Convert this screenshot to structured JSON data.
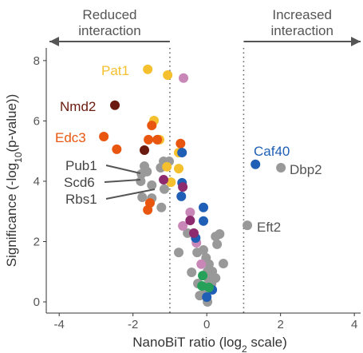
{
  "chart_data": {
    "type": "scatter",
    "header": [
      {
        "lines": [
          "Reduced",
          "interaction"
        ],
        "direction": "left"
      },
      {
        "lines": [
          "Increased",
          "interaction"
        ],
        "direction": "right"
      }
    ],
    "x_label": [
      "NanoBiT ratio (log",
      "2",
      " scale)"
    ],
    "y_label": [
      "Significance (-log",
      "10",
      "(p-value))"
    ],
    "xlim": [
      -4.35,
      4.17
    ],
    "ylim": [
      -0.37,
      8.42
    ],
    "xticks": [
      -4,
      -2,
      0,
      2,
      4
    ],
    "yticks": [
      0,
      2,
      4,
      6,
      8
    ],
    "vlines": [
      -1,
      1
    ],
    "series": [
      {
        "color": "#999999",
        "x": [
          2.01,
          1.1,
          -1.69,
          -1.77,
          -1.62,
          -1.79,
          -1.49,
          -1.25,
          -1.17,
          -1.02,
          -1.15,
          -1.49,
          -1.75,
          -1.23,
          -1.32,
          -0.26,
          -0.02,
          0.28,
          0.24,
          0.35,
          0.02,
          0.15,
          0.06,
          0.24,
          0.13,
          -0.04,
          -0.19,
          0.02,
          0.45,
          -0.41,
          -0.52,
          -0.76,
          0.06,
          -0.24,
          -0.09
        ],
        "y": [
          4.45,
          2.54,
          4.5,
          4.24,
          4.32,
          4.0,
          3.87,
          4.45,
          4.66,
          4.66,
          3.74,
          3.44,
          3.47,
          3.13,
          5.38,
          1.64,
          1.46,
          1.91,
          2.17,
          2.25,
          1.01,
          1.01,
          0.74,
          0.79,
          0.61,
          0.34,
          0.21,
          0,
          1.27,
          0.98,
          2.28,
          1.64,
          1.25,
          0.61,
          1.72
        ]
      },
      {
        "color": "#f5c02e",
        "x": [
          -1.6,
          -1.06,
          -1.43,
          -1.28,
          -0.76,
          -0.76,
          -1.08,
          -0.97
        ],
        "y": [
          7.71,
          7.52,
          6.01,
          5.38,
          4.95,
          4.42,
          4.48,
          3.97
        ]
      },
      {
        "color": "#c987b8",
        "x": [
          -0.63,
          -0.45,
          -0.65,
          -0.15,
          -0.28
        ],
        "y": [
          7.42,
          2.97,
          2.52,
          1.25,
          1.96
        ]
      },
      {
        "color": "#6b1a0f",
        "x": [
          -2.49,
          -1.69
        ],
        "y": [
          6.52,
          5.03
        ]
      },
      {
        "color": "#e8560f",
        "x": [
          -2.79,
          -2.44,
          -1.49,
          -1.58,
          -1.34,
          -0.71,
          -1.54,
          -1.6
        ],
        "y": [
          5.48,
          5.06,
          5.85,
          5.38,
          5.38,
          5.25,
          3.28,
          3.05
        ]
      },
      {
        "color": "#1f5fb5",
        "x": [
          1.32,
          -0.67,
          -0.67,
          -0.69,
          -0.09,
          -0.09,
          -0.3,
          0.15,
          0
        ],
        "y": [
          4.56,
          4.95,
          3.95,
          3.5,
          3.13,
          2.68,
          2.12,
          0.4,
          0.16
        ]
      },
      {
        "color": "#8e2b6e",
        "x": [
          -1.17,
          -0.65,
          -0.35,
          -0.45
        ],
        "y": [
          4.05,
          3.81,
          2.28,
          2.7
        ]
      },
      {
        "color": "#27a05a",
        "x": [
          -0.13,
          0.06,
          -0.11
        ],
        "y": [
          0.53,
          0.48,
          0.87
        ]
      }
    ],
    "annotations": [
      {
        "text": "Pat1",
        "color": "#f5c02e"
      },
      {
        "text": "Nmd2",
        "color": "#6b1a0f"
      },
      {
        "text": "Edc3",
        "color": "#e8560f"
      },
      {
        "text": "Caf40",
        "color": "#1f5fb5"
      },
      {
        "text": "Dbp2",
        "color": "#555555"
      },
      {
        "text": "Eft2",
        "color": "#555555"
      },
      {
        "text": "Pub1",
        "color": "#444444"
      },
      {
        "text": "Scd6",
        "color": "#444444"
      },
      {
        "text": "Rbs1",
        "color": "#444444"
      }
    ]
  }
}
